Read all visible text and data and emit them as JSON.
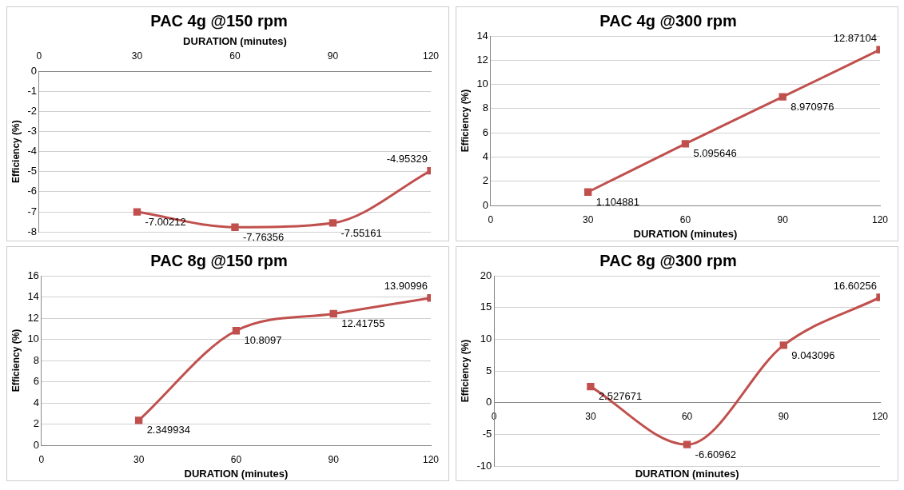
{
  "chart_data": [
    {
      "type": "line",
      "title": "PAC 4g @150 rpm",
      "xlabel": "DURATION (minutes)",
      "ylabel": "Efficiency (%)",
      "x": [
        30,
        60,
        90,
        120
      ],
      "series": [
        {
          "color": "#c0504d",
          "values": [
            -7.00212,
            -7.76356,
            -7.55161,
            -4.95329
          ]
        }
      ],
      "xlim": [
        0,
        120
      ],
      "xticks": [
        0,
        30,
        60,
        90,
        120
      ],
      "ylim": [
        -8,
        0
      ],
      "yticks": [
        -8,
        -7,
        -6,
        -5,
        -4,
        -3,
        -2,
        -1,
        0
      ],
      "grid": "y",
      "legend": false,
      "marker": "square",
      "line_style": "solid",
      "data_labels": true
    },
    {
      "type": "line",
      "title": "PAC 4g @300 rpm",
      "xlabel": "DURATION (minutes)",
      "ylabel": "Efficiency (%)",
      "x": [
        30,
        60,
        90,
        120
      ],
      "series": [
        {
          "color": "#c0504d",
          "values": [
            1.104881,
            5.095646,
            8.970976,
            12.87104
          ]
        }
      ],
      "xlim": [
        0,
        120
      ],
      "xticks": [
        0,
        30,
        60,
        90,
        120
      ],
      "ylim": [
        0,
        14
      ],
      "yticks": [
        0,
        2,
        4,
        6,
        8,
        10,
        12,
        14
      ],
      "grid": "y",
      "legend": false,
      "marker": "square",
      "line_style": "solid",
      "data_labels": true
    },
    {
      "type": "line",
      "title": "PAC 8g @150 rpm",
      "xlabel": "DURATION (minutes)",
      "ylabel": "Efficiency (%)",
      "x": [
        30,
        60,
        90,
        120
      ],
      "series": [
        {
          "color": "#c0504d",
          "values": [
            2.349934,
            10.8097,
            12.41755,
            13.90996
          ]
        }
      ],
      "xlim": [
        0,
        120
      ],
      "xticks": [
        0,
        30,
        60,
        90,
        120
      ],
      "ylim": [
        0,
        16
      ],
      "yticks": [
        0,
        2,
        4,
        6,
        8,
        10,
        12,
        14,
        16
      ],
      "grid": "y",
      "legend": false,
      "marker": "square",
      "line_style": "solid",
      "data_labels": true
    },
    {
      "type": "line",
      "title": "PAC 8g @300 rpm",
      "xlabel": "DURATION (minutes)",
      "ylabel": "Efficiency (%)",
      "x": [
        30,
        60,
        90,
        120
      ],
      "series": [
        {
          "color": "#c0504d",
          "values": [
            2.527671,
            -6.60962,
            9.043096,
            16.60256
          ]
        }
      ],
      "xlim": [
        0,
        120
      ],
      "xticks": [
        0,
        30,
        60,
        90,
        120
      ],
      "ylim": [
        -10,
        20
      ],
      "yticks": [
        -10,
        -5,
        0,
        5,
        10,
        15,
        20
      ],
      "grid": "y",
      "legend": false,
      "marker": "square",
      "line_style": "solid",
      "data_labels": true
    }
  ]
}
